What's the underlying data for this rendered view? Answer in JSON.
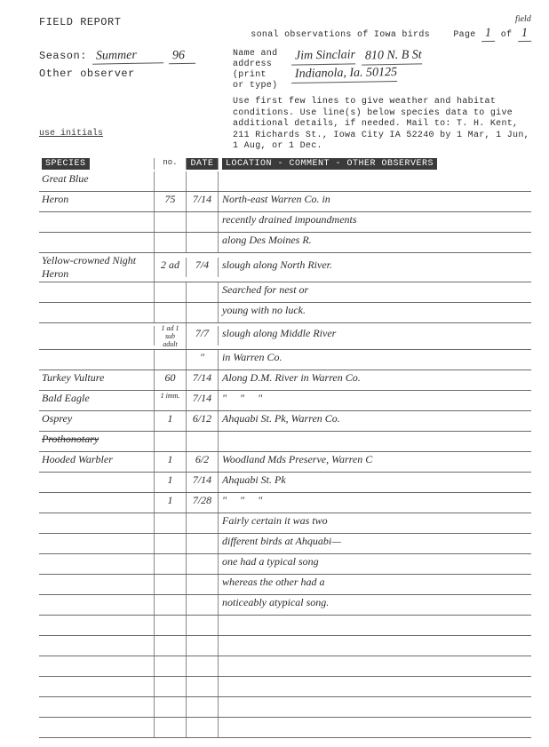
{
  "header": {
    "title_left": "FIELD REPORT",
    "title_right_frag": "sonal observations of Iowa birds",
    "title_right_ann": "field",
    "page_label": "Page",
    "page_of": "of",
    "page_num": "1",
    "page_total": "1"
  },
  "form": {
    "season_label": "Season:",
    "season_value": "Summer",
    "year_value": "96",
    "other_observer_label": "Other observer",
    "name_addr_label": "Name and\naddress\n(print\nor type)",
    "name_line": "Jim Sinclair",
    "addr1": "810 N. B St",
    "addr2": "Indianola, Ia. 50125",
    "instructions": "Use first few lines to give weather and habitat conditions. Use line(s) below species data to give additional details, if needed. Mail to: T. H. Kent, 211 Richards St., Iowa City IA 52240 by 1 Mar, 1 Jun, 1 Aug, or 1 Dec.",
    "use_initials": "use initials",
    "col_species": "SPECIES",
    "col_no": "no.",
    "col_date": "DATE",
    "col_loc": "LOCATION - COMMENT - OTHER OBSERVERS"
  },
  "rows": [
    {
      "species": "Great Blue",
      "no": "",
      "date": "",
      "loc": ""
    },
    {
      "species": "Heron",
      "no": "75",
      "date": "7/14",
      "loc": "North-east Warren Co. in"
    },
    {
      "species": "",
      "no": "",
      "date": "",
      "loc": "recently drained impoundments"
    },
    {
      "species": "",
      "no": "",
      "date": "",
      "loc": "along Des Moines R."
    },
    {
      "species": "Yellow-crowned Night Heron",
      "no": "2 ad",
      "date": "7/4",
      "loc": "slough along North River."
    },
    {
      "species": "",
      "no": "",
      "date": "",
      "loc": "Searched for nest or"
    },
    {
      "species": "",
      "no": "",
      "date": "",
      "loc": "young with no luck."
    },
    {
      "species": "",
      "no": "1 ad 1 sub adult",
      "date": "7/7",
      "loc": "slough along Middle River"
    },
    {
      "species": "",
      "no": "",
      "date": "\"",
      "loc": "in Warren Co."
    },
    {
      "species": "Turkey Vulture",
      "no": "60",
      "date": "7/14",
      "loc": "Along D.M. River in Warren Co."
    },
    {
      "species": "Bald Eagle",
      "no": "1 imm.",
      "date": "7/14",
      "loc": "\"     \"     \""
    },
    {
      "species": "Osprey",
      "no": "1",
      "date": "6/12",
      "loc": "Ahquabi St. Pk, Warren Co."
    },
    {
      "species": "Prothonotary",
      "no": "",
      "date": "",
      "loc": "",
      "strike": true
    },
    {
      "species": "Hooded Warbler",
      "no": "1",
      "date": "6/2",
      "loc": "Woodland Mds Preserve, Warren C"
    },
    {
      "species": "",
      "no": "1",
      "date": "7/14",
      "loc": "Ahquabi St. Pk"
    },
    {
      "species": "",
      "no": "1",
      "date": "7/28",
      "loc": "\"     \"     \""
    },
    {
      "species": "",
      "no": "",
      "date": "",
      "loc": "Fairly certain it was two"
    },
    {
      "species": "",
      "no": "",
      "date": "",
      "loc": "different birds at Ahquabi—"
    },
    {
      "species": "",
      "no": "",
      "date": "",
      "loc": "one had a typical song"
    },
    {
      "species": "",
      "no": "",
      "date": "",
      "loc": "whereas the other had a"
    },
    {
      "species": "",
      "no": "",
      "date": "",
      "loc": "noticeably atypical song."
    },
    {
      "species": "",
      "no": "",
      "date": "",
      "loc": ""
    },
    {
      "species": "",
      "no": "",
      "date": "",
      "loc": ""
    },
    {
      "species": "",
      "no": "",
      "date": "",
      "loc": ""
    },
    {
      "species": "",
      "no": "",
      "date": "",
      "loc": ""
    },
    {
      "species": "",
      "no": "",
      "date": "",
      "loc": ""
    },
    {
      "species": "",
      "no": "",
      "date": "",
      "loc": ""
    }
  ],
  "style": {
    "bg": "#ffffff",
    "text": "#2b2b2b",
    "rule": "#6a6a6a",
    "header_bg": "#3a3a3a",
    "hand_color": "#2a2a2a"
  }
}
